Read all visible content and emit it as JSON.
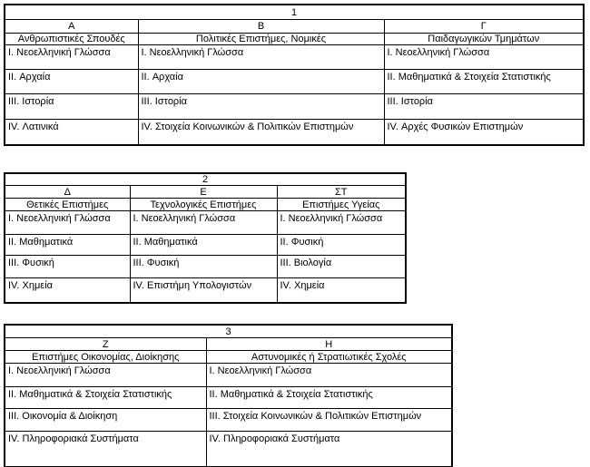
{
  "page": {
    "background_color": "#ffffff",
    "border_color": "#000000",
    "text_color": "#000000"
  },
  "tables": [
    {
      "number": "1",
      "columns": [
        {
          "letter": "Α",
          "title": "Ανθρωπιστικές Σπουδές",
          "subjects": [
            "I. Νεοελληνική Γλώσσα",
            "II. Αρχαία",
            "III. Ιστορία",
            "IV. Λατινικά"
          ]
        },
        {
          "letter": "Β",
          "title": "Πολιτικές Επιστήμες, Νομικές",
          "subjects": [
            "I. Νεοελληνική Γλώσσα",
            "II. Αρχαία",
            "III. Ιστορία",
            "IV. Στοιχεία Κοινωνικών & Πολιτικών Επιστημών"
          ]
        },
        {
          "letter": "Γ",
          "title": "Παιδαγωγικών Τμημάτων",
          "subjects": [
            "I. Νεοελληνική Γλώσσα",
            "II. Μαθηματικά & Στοιχεία Στατιστικής",
            "III. Ιστορία",
            "IV. Αρχές Φυσικών Επιστημών"
          ]
        }
      ]
    },
    {
      "number": "2",
      "columns": [
        {
          "letter": "Δ",
          "title": "Θετικές Επιστήμες",
          "subjects": [
            "I. Νεοελληνική Γλώσσα",
            "II. Μαθηματικά",
            "III. Φυσική",
            "IV. Χημεία"
          ]
        },
        {
          "letter": "Ε",
          "title": "Τεχνολογικές Επιστήμες",
          "subjects": [
            "I. Νεοελληνική Γλώσσα",
            "II. Μαθηματικά",
            "III. Φυσική",
            "IV. Επιστήμη Υπολογιστών"
          ]
        },
        {
          "letter": "ΣΤ",
          "title": "Επιστήμες Υγείας",
          "subjects": [
            "I. Νεοελληνική Γλώσσα",
            "II. Φυσική",
            "III. Βιολογία",
            "IV. Χημεία"
          ]
        }
      ]
    },
    {
      "number": "3",
      "columns": [
        {
          "letter": "Ζ",
          "title": "Επιστήμες Οικονομίας, Διοίκησης",
          "subjects": [
            "I. Νεοελληνική Γλώσσα",
            "II. Μαθηματικά & Στοιχεία Στατιστικής",
            "III. Οικονομία & Διοίκηση",
            "IV. Πληροφοριακά Συστήματα"
          ]
        },
        {
          "letter": "Η",
          "title": "Αστυνομικές ή Στρατιωτικές Σχολές",
          "subjects": [
            "I. Νεοελληνική Γλώσσα",
            "II. Μαθηματικά & Στοιχεία Στατιστικής",
            "III. Στοιχεία Κοινωνικών & Πολιτικών Επιστημών",
            "IV. Πληροφοριακά Συστήματα"
          ]
        }
      ]
    }
  ]
}
